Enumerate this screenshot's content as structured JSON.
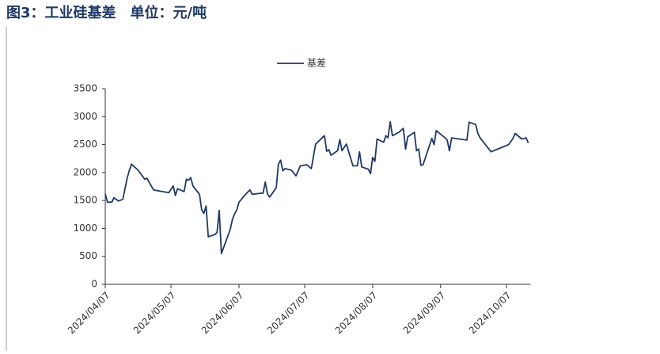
{
  "chart_data": {
    "type": "line",
    "title": "图3：工业硅基差　单位：元/吨",
    "x": [
      "2024/04/07",
      "2024/04/08",
      "2024/04/10",
      "2024/04/11",
      "2024/04/13",
      "2024/04/15",
      "2024/04/17",
      "2024/04/18",
      "2024/04/19",
      "2024/04/22",
      "2024/04/25",
      "2024/04/26",
      "2024/04/29",
      "2024/05/03",
      "2024/05/06",
      "2024/05/08",
      "2024/05/09",
      "2024/05/10",
      "2024/05/13",
      "2024/05/14",
      "2024/05/15",
      "2024/05/16",
      "2024/05/17",
      "2024/05/20",
      "2024/05/21",
      "2024/05/22",
      "2024/05/23",
      "2024/05/24",
      "2024/05/27",
      "2024/05/28",
      "2024/05/29",
      "2024/05/30",
      "2024/06/03",
      "2024/06/04",
      "2024/06/05",
      "2024/06/06",
      "2024/06/07",
      "2024/06/10",
      "2024/06/12",
      "2024/06/13",
      "2024/06/17",
      "2024/06/18",
      "2024/06/19",
      "2024/06/20",
      "2024/06/21",
      "2024/06/24",
      "2024/06/25",
      "2024/06/26",
      "2024/06/27",
      "2024/06/28",
      "2024/07/01",
      "2024/07/03",
      "2024/07/05",
      "2024/07/08",
      "2024/07/10",
      "2024/07/11",
      "2024/07/12",
      "2024/07/16",
      "2024/07/17",
      "2024/07/18",
      "2024/07/19",
      "2024/07/22",
      "2024/07/23",
      "2024/07/24",
      "2024/07/26",
      "2024/07/29",
      "2024/07/31",
      "2024/08/01",
      "2024/08/02",
      "2024/08/05",
      "2024/08/06",
      "2024/08/07",
      "2024/08/08",
      "2024/08/09",
      "2024/08/12",
      "2024/08/13",
      "2024/08/14",
      "2024/08/15",
      "2024/08/16",
      "2024/08/19",
      "2024/08/21",
      "2024/08/22",
      "2024/08/23",
      "2024/08/26",
      "2024/08/27",
      "2024/08/28",
      "2024/08/29",
      "2024/08/30",
      "2024/09/03",
      "2024/09/04",
      "2024/09/05",
      "2024/09/09",
      "2024/09/10",
      "2024/09/11",
      "2024/09/12",
      "2024/09/19",
      "2024/09/20",
      "2024/09/23",
      "2024/09/24",
      "2024/09/25",
      "2024/09/30",
      "2024/10/08",
      "2024/10/10",
      "2024/10/11",
      "2024/10/14",
      "2024/10/16",
      "2024/10/17"
    ],
    "series": [
      {
        "name": "基差",
        "color": "#1f3864",
        "values": [
          1620,
          1470,
          1470,
          1550,
          1490,
          1520,
          1900,
          2040,
          2150,
          2040,
          1880,
          1900,
          1690,
          1660,
          1640,
          1760,
          1590,
          1710,
          1660,
          1880,
          1860,
          1910,
          1760,
          1610,
          1330,
          1270,
          1400,
          850,
          890,
          930,
          1320,
          550,
          980,
          1160,
          1260,
          1330,
          1470,
          1610,
          1690,
          1610,
          1630,
          1630,
          1830,
          1620,
          1560,
          1730,
          2150,
          2220,
          2030,
          2070,
          2040,
          1940,
          2120,
          2140,
          2070,
          2290,
          2510,
          2660,
          2380,
          2410,
          2310,
          2390,
          2590,
          2390,
          2510,
          2120,
          2120,
          2370,
          2100,
          2060,
          1980,
          2270,
          2200,
          2600,
          2540,
          2660,
          2620,
          2910,
          2660,
          2720,
          2790,
          2420,
          2640,
          2720,
          2390,
          2420,
          2130,
          2140,
          2610,
          2500,
          2750,
          2620,
          2580,
          2390,
          2620,
          2580,
          2900,
          2860,
          2700,
          2620,
          2370,
          2500,
          2610,
          2700,
          2600,
          2620,
          2530
        ]
      }
    ],
    "xlim": [
      "2024/04/07",
      "2024/10/18"
    ],
    "xticks": [
      "2024/04/07",
      "2024/05/07",
      "2024/06/07",
      "2024/07/07",
      "2024/08/07",
      "2024/09/07",
      "2024/10/07"
    ],
    "ylim": [
      0,
      3500
    ],
    "yticks": [
      0,
      500,
      1000,
      1500,
      2000,
      2500,
      3000,
      3500
    ],
    "grid": false,
    "legend": "top"
  }
}
